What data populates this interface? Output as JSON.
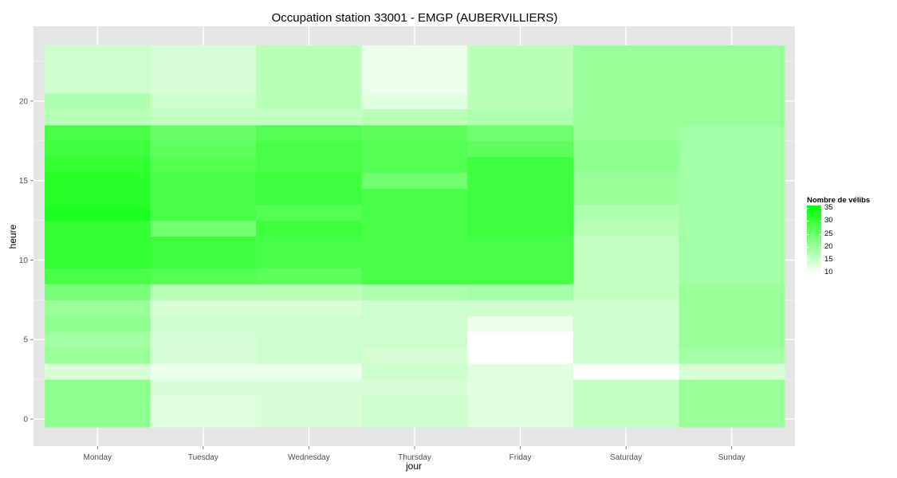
{
  "chart_data": {
    "type": "heatmap",
    "title": "Occupation station 33001 - EMGP (AUBERVILLIERS)",
    "xlabel": "jour",
    "ylabel": "heure",
    "x_categories": [
      "Monday",
      "Tuesday",
      "Wednesday",
      "Thursday",
      "Friday",
      "Saturday",
      "Sunday"
    ],
    "y_ticks": [
      0,
      5,
      10,
      15,
      20
    ],
    "y_range": [
      -0.5,
      23.5
    ],
    "hours": [
      0,
      1,
      2,
      3,
      4,
      5,
      6,
      7,
      8,
      9,
      10,
      11,
      12,
      13,
      14,
      15,
      16,
      17,
      18,
      19,
      20,
      21,
      22,
      23
    ],
    "legend": {
      "title": "Nombre de vélibs",
      "ticks": [
        35,
        30,
        25,
        20,
        15,
        10
      ],
      "min": 10,
      "max": 35,
      "low_color": "#ffffff",
      "high_color": "#00ff00"
    },
    "series": [
      {
        "name": "Monday",
        "values": [
          21,
          21,
          21,
          14,
          20,
          19,
          21,
          20,
          23,
          28,
          30,
          30,
          30,
          32,
          31,
          31,
          30,
          29,
          28,
          17,
          18,
          15,
          15,
          15
        ]
      },
      {
        "name": "Tuesday",
        "values": [
          13,
          13,
          14,
          12,
          14,
          14,
          15,
          14,
          17,
          27,
          29,
          29,
          24,
          28,
          28,
          28,
          27,
          26,
          25,
          16,
          15,
          14,
          14,
          14
        ]
      },
      {
        "name": "Wednesday",
        "values": [
          14,
          14,
          14,
          12,
          15,
          15,
          15,
          14,
          17,
          26,
          28,
          28,
          29,
          27,
          29,
          29,
          28,
          28,
          27,
          16,
          17,
          17,
          17,
          17
        ]
      },
      {
        "name": "Thursday",
        "values": [
          15,
          15,
          14,
          15,
          14,
          15,
          15,
          15,
          18,
          28,
          28,
          28,
          28,
          28,
          28,
          24,
          27,
          27,
          26,
          17,
          13,
          12,
          12,
          12
        ]
      },
      {
        "name": "Friday",
        "values": [
          13,
          13,
          13,
          13,
          10,
          10,
          12,
          15,
          19,
          28,
          28,
          28,
          29,
          29,
          29,
          29,
          29,
          26,
          24,
          18,
          17,
          17,
          17,
          17
        ]
      },
      {
        "name": "Saturday",
        "values": [
          16,
          16,
          16,
          10,
          15,
          15,
          15,
          15,
          16,
          16,
          16,
          16,
          17,
          18,
          20,
          20,
          21,
          21,
          20,
          20,
          20,
          20,
          20,
          20
        ]
      },
      {
        "name": "Sunday",
        "values": [
          20,
          20,
          20,
          14,
          19,
          20,
          20,
          20,
          20,
          19,
          19,
          19,
          19,
          19,
          19,
          19,
          19,
          19,
          19,
          20,
          20,
          20,
          20,
          20
        ]
      }
    ]
  }
}
